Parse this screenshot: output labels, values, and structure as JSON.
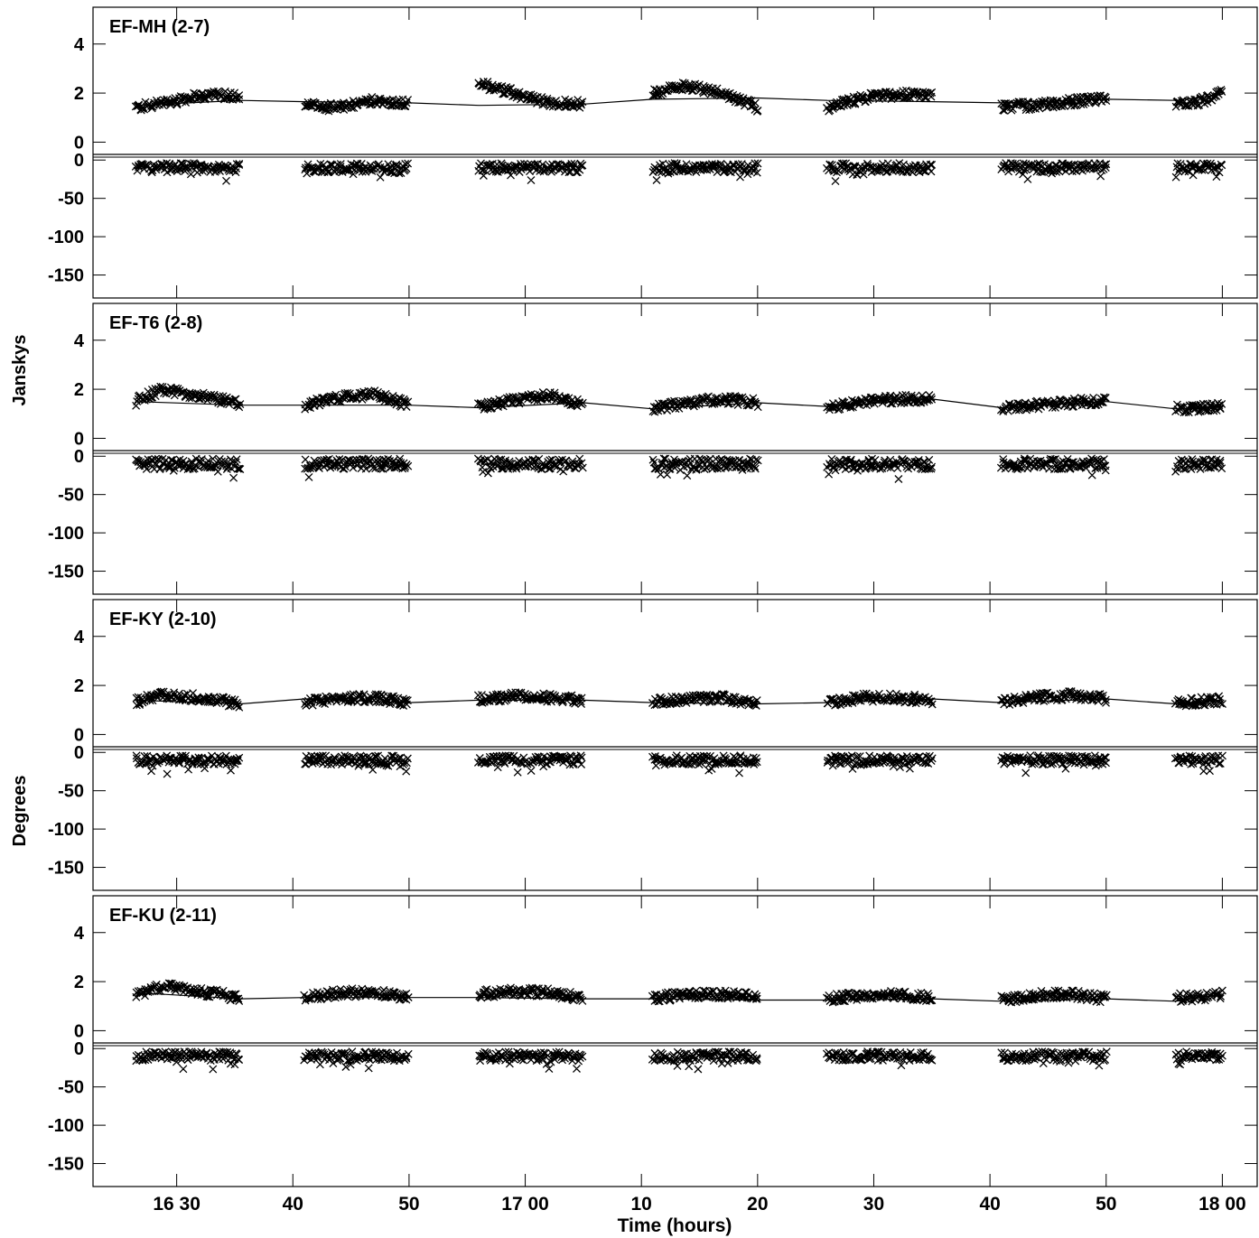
{
  "figure": {
    "ylabel_upper": "Janskys",
    "ylabel_lower": "Degrees",
    "xlabel": "Time (hours)"
  },
  "chart_data": {
    "type": "scatter",
    "x_axis": {
      "range_min": [
        16.38,
        18.05
      ],
      "tick_labels": [
        "16 30",
        "40",
        "50",
        "17 00",
        "10",
        "20",
        "30",
        "40",
        "50",
        "18 00"
      ],
      "tick_minutes": [
        990,
        1000,
        1010,
        1020,
        1030,
        1040,
        1050,
        1060,
        1070,
        1080
      ]
    },
    "amp_axis": {
      "range": [
        -0.5,
        5.5
      ],
      "ticks": [
        0,
        2,
        4
      ],
      "labels": [
        "0",
        "2",
        "4"
      ]
    },
    "phase_axis": {
      "range": [
        -180,
        5
      ],
      "ticks": [
        0,
        -50,
        -100,
        -150
      ],
      "labels": [
        "0",
        "-50",
        "-100",
        "-150"
      ]
    },
    "scans": [
      [
        986.5,
        995.5
      ],
      [
        1001.0,
        1010.0
      ],
      [
        1016.0,
        1025.0
      ],
      [
        1031.0,
        1040.0
      ],
      [
        1046.0,
        1055.0
      ],
      [
        1061.0,
        1070.0
      ],
      [
        1076.0,
        1080.0
      ]
    ],
    "panels": [
      {
        "label": "EF-MH (2-7)",
        "model_line_amp": [
          [
            986.5,
            1.5
          ],
          [
            995.5,
            1.7
          ],
          [
            1001.0,
            1.65
          ],
          [
            1010.0,
            1.6
          ],
          [
            1016.0,
            1.5
          ],
          [
            1025.0,
            1.55
          ],
          [
            1031.0,
            1.75
          ],
          [
            1040.0,
            1.8
          ],
          [
            1046.0,
            1.7
          ],
          [
            1055.0,
            1.65
          ],
          [
            1061.0,
            1.6
          ],
          [
            1070.0,
            1.75
          ],
          [
            1076.0,
            1.7
          ],
          [
            1080.0,
            1.95
          ]
        ],
        "amp_by_scan": [
          [
            [
              986.5,
              1.4
            ],
            [
              989,
              1.6
            ],
            [
              992,
              1.9
            ],
            [
              995.5,
              1.9
            ]
          ],
          [
            [
              1001,
              1.5
            ],
            [
              1004,
              1.4
            ],
            [
              1007,
              1.7
            ],
            [
              1010,
              1.6
            ]
          ],
          [
            [
              1016,
              2.4
            ],
            [
              1019,
              2.0
            ],
            [
              1022,
              1.6
            ],
            [
              1025,
              1.55
            ]
          ],
          [
            [
              1031,
              2.0
            ],
            [
              1034,
              2.3
            ],
            [
              1037,
              2.0
            ],
            [
              1040,
              1.4
            ]
          ],
          [
            [
              1046,
              1.4
            ],
            [
              1049,
              1.8
            ],
            [
              1052,
              1.95
            ],
            [
              1055,
              1.9
            ]
          ],
          [
            [
              1061,
              1.45
            ],
            [
              1064,
              1.5
            ],
            [
              1067,
              1.65
            ],
            [
              1070,
              1.75
            ]
          ],
          [
            [
              1076,
              1.5
            ],
            [
              1078,
              1.65
            ],
            [
              1080,
              2.0
            ]
          ]
        ],
        "phase_mean": -10,
        "phase_spread": 6
      },
      {
        "label": "EF-T6 (2-8)",
        "model_line_amp": [
          [
            986.5,
            1.5
          ],
          [
            995.5,
            1.35
          ],
          [
            1001.0,
            1.35
          ],
          [
            1010.0,
            1.35
          ],
          [
            1016.0,
            1.25
          ],
          [
            1025.0,
            1.45
          ],
          [
            1031.0,
            1.2
          ],
          [
            1040.0,
            1.45
          ],
          [
            1046.0,
            1.3
          ],
          [
            1055.0,
            1.6
          ],
          [
            1061.0,
            1.25
          ],
          [
            1070.0,
            1.5
          ],
          [
            1076.0,
            1.2
          ],
          [
            1080.0,
            1.3
          ]
        ],
        "amp_by_scan": [
          [
            [
              986.5,
              1.5
            ],
            [
              988.5,
              1.95
            ],
            [
              991.5,
              1.8
            ],
            [
              995.5,
              1.4
            ]
          ],
          [
            [
              1001,
              1.35
            ],
            [
              1004,
              1.65
            ],
            [
              1007,
              1.8
            ],
            [
              1010,
              1.35
            ]
          ],
          [
            [
              1016,
              1.25
            ],
            [
              1019,
              1.55
            ],
            [
              1022,
              1.75
            ],
            [
              1025,
              1.4
            ]
          ],
          [
            [
              1031,
              1.2
            ],
            [
              1034,
              1.45
            ],
            [
              1037,
              1.6
            ],
            [
              1040,
              1.45
            ]
          ],
          [
            [
              1046,
              1.25
            ],
            [
              1049,
              1.5
            ],
            [
              1052,
              1.6
            ],
            [
              1055,
              1.6
            ]
          ],
          [
            [
              1061,
              1.25
            ],
            [
              1064,
              1.35
            ],
            [
              1067,
              1.45
            ],
            [
              1070,
              1.55
            ]
          ],
          [
            [
              1076,
              1.2
            ],
            [
              1078,
              1.25
            ],
            [
              1080,
              1.3
            ]
          ]
        ],
        "phase_mean": -10,
        "phase_spread": 7
      },
      {
        "label": "EF-KY (2-10)",
        "model_line_amp": [
          [
            986.5,
            1.4
          ],
          [
            995.5,
            1.25
          ],
          [
            1001.0,
            1.45
          ],
          [
            1010.0,
            1.3
          ],
          [
            1016.0,
            1.4
          ],
          [
            1025.0,
            1.4
          ],
          [
            1031.0,
            1.3
          ],
          [
            1040.0,
            1.25
          ],
          [
            1046.0,
            1.3
          ],
          [
            1055.0,
            1.45
          ],
          [
            1061.0,
            1.3
          ],
          [
            1070.0,
            1.45
          ],
          [
            1076.0,
            1.25
          ],
          [
            1080.0,
            1.4
          ]
        ],
        "amp_by_scan": [
          [
            [
              986.5,
              1.35
            ],
            [
              989,
              1.6
            ],
            [
              992,
              1.5
            ],
            [
              995.5,
              1.25
            ]
          ],
          [
            [
              1001,
              1.3
            ],
            [
              1004,
              1.45
            ],
            [
              1007,
              1.5
            ],
            [
              1010,
              1.3
            ]
          ],
          [
            [
              1016,
              1.45
            ],
            [
              1019,
              1.55
            ],
            [
              1022,
              1.5
            ],
            [
              1025,
              1.4
            ]
          ],
          [
            [
              1031,
              1.35
            ],
            [
              1034,
              1.45
            ],
            [
              1037,
              1.5
            ],
            [
              1040,
              1.25
            ]
          ],
          [
            [
              1046,
              1.3
            ],
            [
              1049,
              1.5
            ],
            [
              1052,
              1.5
            ],
            [
              1055,
              1.4
            ]
          ],
          [
            [
              1061,
              1.35
            ],
            [
              1064,
              1.5
            ],
            [
              1067,
              1.6
            ],
            [
              1070,
              1.45
            ]
          ],
          [
            [
              1076,
              1.3
            ],
            [
              1078,
              1.35
            ],
            [
              1080,
              1.4
            ]
          ]
        ],
        "phase_mean": -10,
        "phase_spread": 6
      },
      {
        "label": "EF-KU (2-11)",
        "model_line_amp": [
          [
            986.5,
            1.55
          ],
          [
            995.5,
            1.3
          ],
          [
            1001.0,
            1.35
          ],
          [
            1010.0,
            1.35
          ],
          [
            1016.0,
            1.35
          ],
          [
            1025.0,
            1.3
          ],
          [
            1031.0,
            1.3
          ],
          [
            1040.0,
            1.25
          ],
          [
            1046.0,
            1.25
          ],
          [
            1055.0,
            1.3
          ],
          [
            1061.0,
            1.2
          ],
          [
            1070.0,
            1.3
          ],
          [
            1076.0,
            1.2
          ],
          [
            1080.0,
            1.5
          ]
        ],
        "amp_by_scan": [
          [
            [
              986.5,
              1.5
            ],
            [
              989,
              1.8
            ],
            [
              992,
              1.6
            ],
            [
              995.5,
              1.35
            ]
          ],
          [
            [
              1001,
              1.35
            ],
            [
              1004,
              1.55
            ],
            [
              1007,
              1.55
            ],
            [
              1010,
              1.35
            ]
          ],
          [
            [
              1016,
              1.5
            ],
            [
              1019,
              1.6
            ],
            [
              1022,
              1.55
            ],
            [
              1025,
              1.35
            ]
          ],
          [
            [
              1031,
              1.35
            ],
            [
              1034,
              1.45
            ],
            [
              1037,
              1.5
            ],
            [
              1040,
              1.35
            ]
          ],
          [
            [
              1046,
              1.3
            ],
            [
              1049,
              1.45
            ],
            [
              1052,
              1.45
            ],
            [
              1055,
              1.35
            ]
          ],
          [
            [
              1061,
              1.25
            ],
            [
              1064,
              1.45
            ],
            [
              1067,
              1.5
            ],
            [
              1070,
              1.3
            ]
          ],
          [
            [
              1076,
              1.35
            ],
            [
              1078,
              1.35
            ],
            [
              1080,
              1.5
            ]
          ]
        ],
        "phase_mean": -10,
        "phase_spread": 6
      }
    ]
  }
}
